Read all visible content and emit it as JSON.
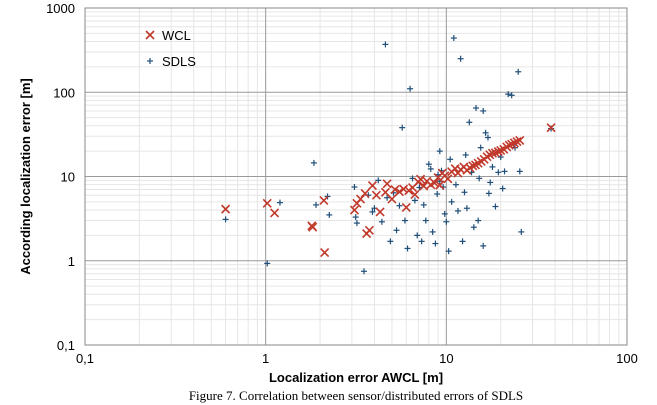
{
  "chart_data": {
    "type": "scatter",
    "xscale": "log",
    "yscale": "log",
    "xlim": [
      0.1,
      100
    ],
    "ylim": [
      0.1,
      1000
    ],
    "xlabel": "Localization error AWCL [m]",
    "ylabel": "According localization error [m]",
    "x_tick_labels": [
      "0,1",
      "1",
      "10",
      "100"
    ],
    "y_tick_labels": [
      "0,1",
      "1",
      "10",
      "100",
      "1000"
    ],
    "grid": true,
    "legend_position": "top-left",
    "caption": "Figure 7. Correlation between sensor/distributed errors of SDLS",
    "series": [
      {
        "name": "WCL",
        "marker": "x",
        "color": "#c0392b",
        "points": [
          [
            0.6,
            4.1
          ],
          [
            1.02,
            4.8
          ],
          [
            1.12,
            3.7
          ],
          [
            1.8,
            2.6
          ],
          [
            1.82,
            2.5
          ],
          [
            2.1,
            5.2
          ],
          [
            2.12,
            1.25
          ],
          [
            3.1,
            4.0
          ],
          [
            3.2,
            4.8
          ],
          [
            3.35,
            5.4
          ],
          [
            3.55,
            6.3
          ],
          [
            3.62,
            2.1
          ],
          [
            3.75,
            2.3
          ],
          [
            3.9,
            7.8
          ],
          [
            4.1,
            6.0
          ],
          [
            4.3,
            3.8
          ],
          [
            4.6,
            6.5
          ],
          [
            4.7,
            8.2
          ],
          [
            5.0,
            5.4
          ],
          [
            5.2,
            7.0
          ],
          [
            5.5,
            6.6
          ],
          [
            5.8,
            7.1
          ],
          [
            6.0,
            4.3
          ],
          [
            6.2,
            6.8
          ],
          [
            6.5,
            7.4
          ],
          [
            6.7,
            6.1
          ],
          [
            7.0,
            8.6
          ],
          [
            7.2,
            9.3
          ],
          [
            7.5,
            7.7
          ],
          [
            7.8,
            8.8
          ],
          [
            8.2,
            8.0
          ],
          [
            8.6,
            8.4
          ],
          [
            9.0,
            9.7
          ],
          [
            9.2,
            7.9
          ],
          [
            9.5,
            11.0
          ],
          [
            9.8,
            10.2
          ],
          [
            10.2,
            9.4
          ],
          [
            10.7,
            11.4
          ],
          [
            11.2,
            12.4
          ],
          [
            11.6,
            11.0
          ],
          [
            12.0,
            12.1
          ],
          [
            12.5,
            13.0
          ],
          [
            13.0,
            11.9
          ],
          [
            13.5,
            12.7
          ],
          [
            14.0,
            13.4
          ],
          [
            14.5,
            13.7
          ],
          [
            15.0,
            14.4
          ],
          [
            15.6,
            15.1
          ],
          [
            16.2,
            16.0
          ],
          [
            16.8,
            17.2
          ],
          [
            17.4,
            18.1
          ],
          [
            18.0,
            18.9
          ],
          [
            18.7,
            19.1
          ],
          [
            19.4,
            19.8
          ],
          [
            20.0,
            20.4
          ],
          [
            20.8,
            21.0
          ],
          [
            21.6,
            22.4
          ],
          [
            22.3,
            23.5
          ],
          [
            23.0,
            24.2
          ],
          [
            23.8,
            25.1
          ],
          [
            24.6,
            26.0
          ],
          [
            25.5,
            26.8
          ],
          [
            38.0,
            38.0
          ]
        ]
      },
      {
        "name": "SDLS",
        "marker": "+",
        "color": "#1f4e79",
        "points": [
          [
            0.6,
            3.1
          ],
          [
            1.02,
            0.93
          ],
          [
            1.2,
            4.9
          ],
          [
            1.85,
            14.5
          ],
          [
            1.9,
            4.6
          ],
          [
            2.2,
            5.8
          ],
          [
            2.25,
            3.5
          ],
          [
            3.1,
            7.5
          ],
          [
            3.15,
            3.3
          ],
          [
            3.2,
            2.8
          ],
          [
            3.5,
            0.75
          ],
          [
            3.7,
            6.0
          ],
          [
            3.9,
            3.8
          ],
          [
            4.0,
            4.2
          ],
          [
            4.2,
            9.0
          ],
          [
            4.4,
            2.9
          ],
          [
            4.6,
            370
          ],
          [
            4.7,
            5.6
          ],
          [
            4.9,
            1.7
          ],
          [
            5.1,
            6.4
          ],
          [
            5.3,
            2.3
          ],
          [
            5.5,
            4.5
          ],
          [
            5.7,
            38
          ],
          [
            5.9,
            3.0
          ],
          [
            6.1,
            1.4
          ],
          [
            6.3,
            110
          ],
          [
            6.5,
            9.5
          ],
          [
            6.7,
            5.2
          ],
          [
            6.9,
            2.0
          ],
          [
            7.1,
            7.4
          ],
          [
            7.3,
            1.7
          ],
          [
            7.5,
            4.6
          ],
          [
            7.7,
            3.0
          ],
          [
            8.0,
            14.0
          ],
          [
            8.2,
            12.3
          ],
          [
            8.4,
            2.2
          ],
          [
            8.7,
            1.6
          ],
          [
            8.9,
            6.2
          ],
          [
            9.0,
            10.5
          ],
          [
            9.2,
            8.8
          ],
          [
            9.4,
            11.7
          ],
          [
            9.6,
            7.5
          ],
          [
            9.8,
            3.6
          ],
          [
            10.0,
            2.9
          ],
          [
            10.3,
            1.3
          ],
          [
            10.7,
            5.0
          ],
          [
            11.0,
            440
          ],
          [
            11.3,
            8.0
          ],
          [
            11.6,
            3.9
          ],
          [
            12.0,
            250
          ],
          [
            12.3,
            1.7
          ],
          [
            12.6,
            6.5
          ],
          [
            13.0,
            4.2
          ],
          [
            13.4,
            44
          ],
          [
            13.8,
            11.2
          ],
          [
            14.2,
            2.5
          ],
          [
            14.6,
            65
          ],
          [
            15.0,
            3.0
          ],
          [
            15.5,
            22
          ],
          [
            16.0,
            60
          ],
          [
            16.5,
            33
          ],
          [
            17.0,
            29
          ],
          [
            17.5,
            8.5
          ],
          [
            18.0,
            13.0
          ],
          [
            18.7,
            4.4
          ],
          [
            19.4,
            11.2
          ],
          [
            20.0,
            17.0
          ],
          [
            21.0,
            11.5
          ],
          [
            22.0,
            95
          ],
          [
            23.0,
            92
          ],
          [
            24.0,
            22.0
          ],
          [
            25.0,
            175
          ],
          [
            26.0,
            2.2
          ],
          [
            25.5,
            11.5
          ],
          [
            38.0,
            37.0
          ],
          [
            9.2,
            20.0
          ],
          [
            10.5,
            16.0
          ],
          [
            12.8,
            18.0
          ],
          [
            15.2,
            9.5
          ],
          [
            17.2,
            6.3
          ],
          [
            20.5,
            7.2
          ],
          [
            16.0,
            1.5
          ]
        ]
      }
    ]
  }
}
